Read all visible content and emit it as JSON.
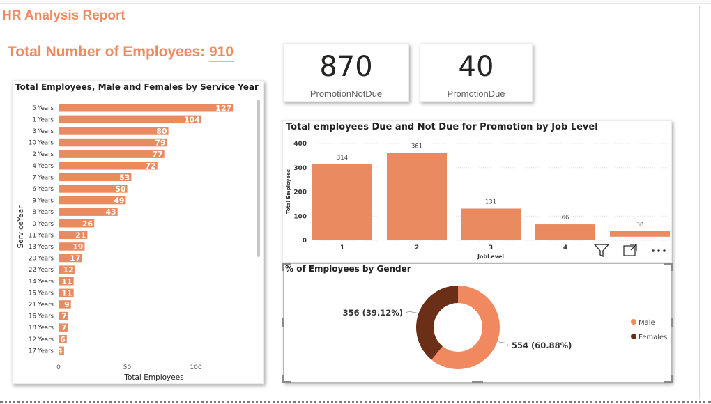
{
  "report": {
    "title": "HR Analysis Report"
  },
  "total": {
    "label": "Total Number of Employees:",
    "value": "910"
  },
  "kpis": [
    {
      "value": "870",
      "label": "PromotionNotDue"
    },
    {
      "value": "40",
      "label": "PromotionDue"
    }
  ],
  "colors": {
    "accent": "#f0895f",
    "bar": "#e98a60",
    "male": "#f0895f",
    "female": "#6b2f18"
  },
  "icons": [
    "filter-icon",
    "focus-mode-icon",
    "more-options-icon"
  ],
  "chart_data": [
    {
      "type": "bar",
      "orientation": "horizontal",
      "title": "Total Employees, Male and Females by Service Year",
      "xlabel": "Total Employees",
      "ylabel": "ServiceYear",
      "xlim": [
        0,
        130
      ],
      "xticks": [
        "0",
        "50",
        "100"
      ],
      "categories": [
        "5 Years",
        "1 Years",
        "3 Years",
        "10 Years",
        "2 Years",
        "4 Years",
        "7 Years",
        "6 Years",
        "9 Years",
        "8 Years",
        "0 Years",
        "11 Years",
        "13 Years",
        "20 Years",
        "22 Years",
        "14 Years",
        "15 Years",
        "21 Years",
        "16 Years",
        "18 Years",
        "12 Years",
        "17 Years"
      ],
      "values": [
        127,
        104,
        80,
        79,
        77,
        72,
        53,
        50,
        49,
        43,
        26,
        21,
        19,
        17,
        12,
        11,
        11,
        9,
        7,
        7,
        6,
        4
      ],
      "grid": false
    },
    {
      "type": "bar",
      "title": "Total employees Due and Not Due for Promotion by Job Level",
      "xlabel": "JobLevel",
      "ylabel": "Total Employees",
      "ylim": [
        0,
        400
      ],
      "yticks": [
        "0",
        "100",
        "200",
        "300",
        "400"
      ],
      "categories": [
        "1",
        "2",
        "3",
        "4",
        "5"
      ],
      "values": [
        314,
        361,
        131,
        66,
        38
      ],
      "grid": true
    },
    {
      "type": "pie",
      "donut": true,
      "title": "% of Employees by Gender",
      "legend_position": "right",
      "series": [
        {
          "name": "Male",
          "value": 554,
          "label": "554 (60.88%)"
        },
        {
          "name": "Females",
          "value": 356,
          "label": "356 (39.12%)"
        }
      ]
    }
  ]
}
